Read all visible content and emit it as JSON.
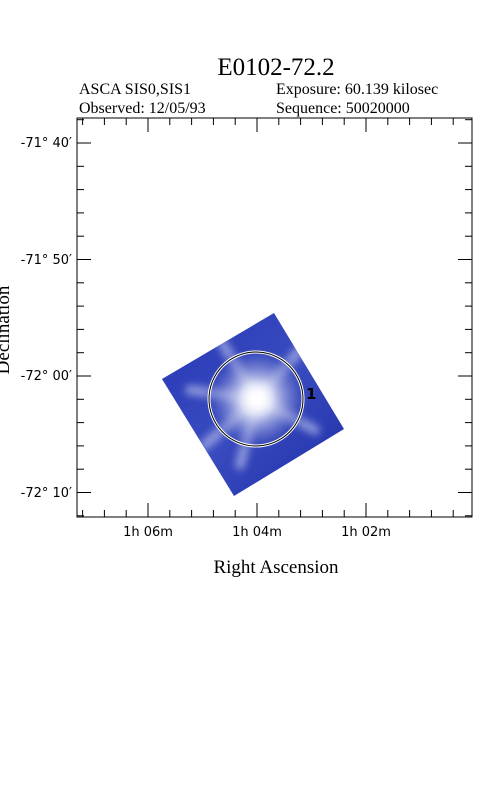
{
  "header": {
    "title": "E0102-72.2",
    "instrument": "ASCA SIS0,SIS1",
    "exposure": "Exposure: 60.139 kilosec",
    "observed": "Observed: 12/05/93",
    "sequence": "Sequence: 50020000"
  },
  "chart_data": {
    "type": "heatmap",
    "xlabel": "Right Ascension",
    "ylabel": "Declination",
    "x_ticks": [
      {
        "label": "1h 06m",
        "ra_min": 66
      },
      {
        "label": "1h 04m",
        "ra_min": 64
      },
      {
        "label": "1h 02m",
        "ra_min": 62
      }
    ],
    "y_ticks": [
      {
        "label": "-71° 40′",
        "dec_arcmin": -4300
      },
      {
        "label": "-71° 50′",
        "dec_arcmin": -4310
      },
      {
        "label": "-72° 00′",
        "dec_arcmin": -4320
      },
      {
        "label": "-72° 10′",
        "dec_arcmin": -4330
      }
    ],
    "regions": [
      {
        "label": "1"
      }
    ],
    "colors": {
      "image": "#2233b0",
      "core": "#ffffff",
      "frame": "#000000"
    }
  }
}
